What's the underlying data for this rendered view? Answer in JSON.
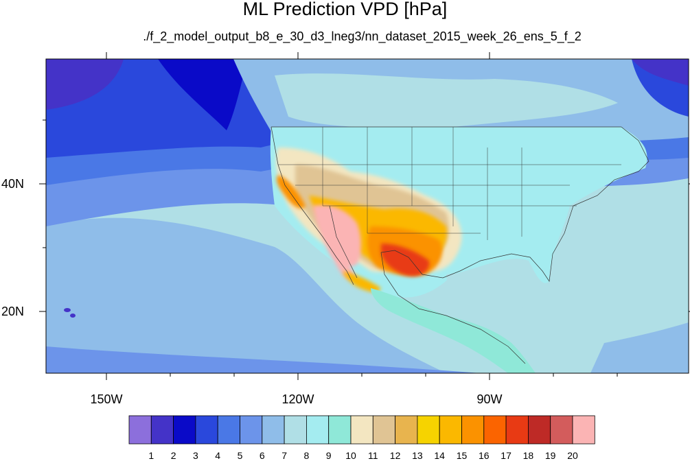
{
  "title": "ML Prediction VPD [hPa]",
  "subtitle": "./f_2_model_output_b8_e_30_d3_lneg3/nn_dataset_2015_week_26_ens_5_f_2",
  "axes": {
    "lat_labels": [
      "40N",
      "20N"
    ],
    "lon_labels": [
      "150W",
      "120W",
      "90W"
    ]
  },
  "colorbar": {
    "labels": [
      "1",
      "2",
      "3",
      "4",
      "5",
      "6",
      "7",
      "8",
      "9",
      "10",
      "11",
      "12",
      "13",
      "14",
      "15",
      "16",
      "17",
      "18",
      "19",
      "20"
    ],
    "colors": [
      "#8c6fdc",
      "#4433c8",
      "#0a0ac8",
      "#2a48dc",
      "#4a78e6",
      "#6c94ea",
      "#8fbde9",
      "#b0dfe6",
      "#a4ecf0",
      "#8fe8d8",
      "#f3e6c1",
      "#e0c494",
      "#e8b44e",
      "#f6d300",
      "#fbb800",
      "#fb9200",
      "#fb6400",
      "#e83a14",
      "#be2a26",
      "#d35c5c",
      "#fbb4b4"
    ]
  },
  "map_colors": {
    "ocean_far": "#b0dfe6",
    "ocean_mid": "#8fbde9",
    "north_blue": "#2a48dc",
    "arctic": "#4433c8",
    "land_low": "#a4ecf0",
    "desert": "#f3e6c1",
    "hot": "#fb9200",
    "very_hot": "#fbb4b4"
  }
}
